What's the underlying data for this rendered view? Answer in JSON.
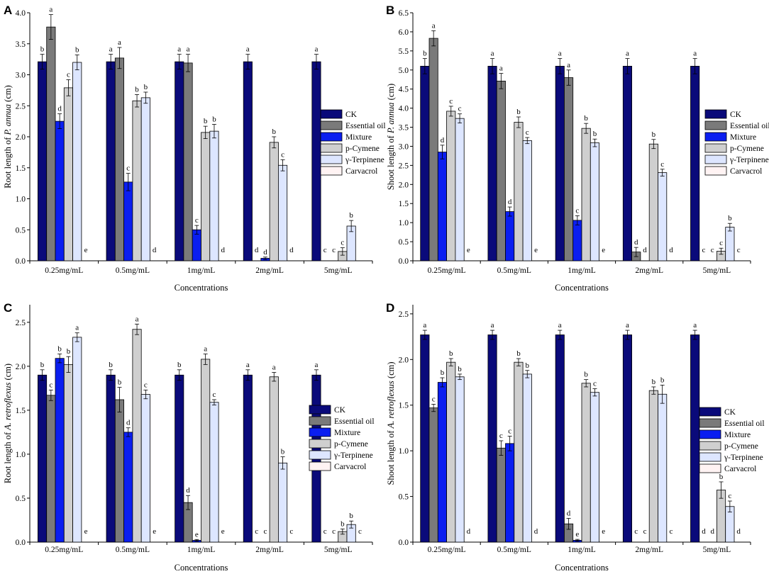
{
  "figure": {
    "legend_entries": [
      "CK",
      "Essential oil",
      "Mixture",
      "p-Cymene",
      "γ-Terpinene",
      "Carvacrol"
    ],
    "series_colors": [
      "#0a0a7a",
      "#7a7a7a",
      "#0a1ef0",
      "#cfcfcf",
      "#dde6ff",
      "#fff3f3"
    ]
  },
  "chart_data": [
    {
      "panel": "A",
      "type": "bar",
      "title": "",
      "xlabel": "Concentrations",
      "ylabel_prefix": "Root length of ",
      "ylabel_species": "P. annua",
      "ylabel_suffix": " (cm)",
      "categories": [
        "0.25mg/mL",
        "0.5mg/mL",
        "1mg/mL",
        "2mg/mL",
        "5mg/mL"
      ],
      "ylim": [
        0,
        4.0
      ],
      "yticks": [
        "0.0",
        "0.5",
        "1.0",
        "1.5",
        "2.0",
        "2.5",
        "3.0",
        "3.5",
        "4.0"
      ],
      "legend_position": "right",
      "series": [
        {
          "name": "CK",
          "values": [
            3.21,
            3.21,
            3.21,
            3.21,
            3.21
          ],
          "errors": [
            0.12,
            0.12,
            0.12,
            0.12,
            0.12
          ],
          "letters": [
            "b",
            "a",
            "a",
            "a",
            "a"
          ]
        },
        {
          "name": "Essential oil",
          "values": [
            3.77,
            3.27,
            3.19,
            0,
            0
          ],
          "errors": [
            0.2,
            0.17,
            0.14,
            0,
            0
          ],
          "letters": [
            "a",
            "a",
            "a",
            "d",
            "c"
          ]
        },
        {
          "name": "Mixture",
          "values": [
            2.25,
            1.27,
            0.5,
            0.04,
            0
          ],
          "errors": [
            0.12,
            0.14,
            0.07,
            0.02,
            0
          ],
          "letters": [
            "d",
            "c",
            "c",
            "d",
            "c"
          ]
        },
        {
          "name": "p-Cymene",
          "values": [
            2.79,
            2.58,
            2.07,
            1.91,
            0.15
          ],
          "errors": [
            0.13,
            0.1,
            0.1,
            0.09,
            0.06
          ],
          "letters": [
            "c",
            "b",
            "b",
            "b",
            "c"
          ]
        },
        {
          "name": "γ-Terpinene",
          "values": [
            3.2,
            2.63,
            2.09,
            1.54,
            0.56
          ],
          "errors": [
            0.12,
            0.09,
            0.11,
            0.09,
            0.09
          ],
          "letters": [
            "b",
            "b",
            "b",
            "c",
            "b"
          ]
        },
        {
          "name": "Carvacrol",
          "values": [
            0,
            0,
            0,
            0,
            0
          ],
          "errors": [
            0,
            0,
            0,
            0,
            0
          ],
          "letters": [
            "e",
            "d",
            "d",
            "d",
            ""
          ]
        }
      ]
    },
    {
      "panel": "B",
      "type": "bar",
      "title": "",
      "xlabel": "Concentrations",
      "ylabel_prefix": "Shoot length of ",
      "ylabel_species": "P. annua",
      "ylabel_suffix": " (cm)",
      "categories": [
        "0.25mg/mL",
        "0.5mg/mL",
        "1mg/mL",
        "2mg/mL",
        "5mg/mL"
      ],
      "ylim": [
        0,
        6.5
      ],
      "yticks": [
        "0.0",
        "0.5",
        "1.0",
        "1.5",
        "2.0",
        "2.5",
        "3.0",
        "3.5",
        "4.0",
        "4.5",
        "5.0",
        "5.5",
        "6.0",
        "6.5"
      ],
      "legend_position": "right",
      "series": [
        {
          "name": "CK",
          "values": [
            5.1,
            5.1,
            5.1,
            5.1,
            5.1
          ],
          "errors": [
            0.2,
            0.2,
            0.2,
            0.2,
            0.2
          ],
          "letters": [
            "b",
            "a",
            "a",
            "a",
            "a"
          ]
        },
        {
          "name": "Essential oil",
          "values": [
            5.83,
            4.71,
            4.8,
            0.23,
            0
          ],
          "errors": [
            0.2,
            0.2,
            0.2,
            0.12,
            0
          ],
          "letters": [
            "a",
            "a",
            "a",
            "d",
            "c"
          ]
        },
        {
          "name": "Mixture",
          "values": [
            2.85,
            1.29,
            1.06,
            0,
            0
          ],
          "errors": [
            0.18,
            0.12,
            0.12,
            0,
            0
          ],
          "letters": [
            "d",
            "d",
            "c",
            "d",
            "c"
          ]
        },
        {
          "name": "p-Cymene",
          "values": [
            3.92,
            3.63,
            3.47,
            3.06,
            0.25
          ],
          "errors": [
            0.13,
            0.14,
            0.13,
            0.12,
            0.08
          ],
          "letters": [
            "c",
            "b",
            "b",
            "b",
            "c"
          ]
        },
        {
          "name": "γ-Terpinene",
          "values": [
            3.73,
            3.15,
            3.09,
            2.31,
            0.88
          ],
          "errors": [
            0.12,
            0.08,
            0.1,
            0.09,
            0.1
          ],
          "letters": [
            "c",
            "c",
            "b",
            "c",
            "b"
          ]
        },
        {
          "name": "Carvacrol",
          "values": [
            0,
            0,
            0,
            0,
            0
          ],
          "errors": [
            0,
            0,
            0,
            0,
            0
          ],
          "letters": [
            "e",
            "e",
            "e",
            "d",
            "c"
          ]
        }
      ]
    },
    {
      "panel": "C",
      "type": "bar",
      "title": "",
      "xlabel": "Concentrations",
      "ylabel_prefix": "Root length of ",
      "ylabel_species": "A. retroflexus",
      "ylabel_suffix": " (cm)",
      "categories": [
        "0.25mg/mL",
        "0.5mg/mL",
        "1mg/mL",
        "2mg/mL",
        "5mg/mL"
      ],
      "ylim": [
        0,
        2.7
      ],
      "yticks": [
        "0.0",
        "0.5",
        "1.0",
        "1.5",
        "2.0",
        "2.5"
      ],
      "legend_position": "right",
      "series": [
        {
          "name": "CK",
          "values": [
            1.9,
            1.9,
            1.9,
            1.9,
            1.9
          ],
          "errors": [
            0.06,
            0.06,
            0.06,
            0.06,
            0.06
          ],
          "letters": [
            "b",
            "b",
            "b",
            "a",
            "a"
          ]
        },
        {
          "name": "Essential oil",
          "values": [
            1.67,
            1.62,
            0.45,
            0,
            0
          ],
          "errors": [
            0.06,
            0.14,
            0.08,
            0,
            0
          ],
          "letters": [
            "c",
            "b",
            "d",
            "c",
            "c"
          ]
        },
        {
          "name": "Mixture",
          "values": [
            2.09,
            1.25,
            0.02,
            0,
            0
          ],
          "errors": [
            0.05,
            0.05,
            0.01,
            0,
            0
          ],
          "letters": [
            "b",
            "d",
            "e",
            "c",
            "c"
          ]
        },
        {
          "name": "p-Cymene",
          "values": [
            2.02,
            2.42,
            2.08,
            1.88,
            0.12
          ],
          "errors": [
            0.09,
            0.06,
            0.06,
            0.05,
            0.03
          ],
          "letters": [
            "b",
            "a",
            "a",
            "a",
            "b"
          ]
        },
        {
          "name": "γ-Terpinene",
          "values": [
            2.33,
            1.68,
            1.59,
            0.9,
            0.2
          ],
          "errors": [
            0.05,
            0.05,
            0.03,
            0.07,
            0.04
          ],
          "letters": [
            "a",
            "c",
            "c",
            "b",
            "b"
          ]
        },
        {
          "name": "Carvacrol",
          "values": [
            0,
            0,
            0,
            0,
            0
          ],
          "errors": [
            0,
            0,
            0,
            0,
            0
          ],
          "letters": [
            "e",
            "e",
            "e",
            "c",
            "c"
          ]
        }
      ]
    },
    {
      "panel": "D",
      "type": "bar",
      "title": "",
      "xlabel": "Concentrations",
      "ylabel_prefix": "Shoot length of ",
      "ylabel_species": "A. retroflexus",
      "ylabel_suffix": " (cm)",
      "categories": [
        "0.25mg/mL",
        "0.5mg/mL",
        "1mg/mL",
        "2mg/mL",
        "5mg/mL"
      ],
      "ylim": [
        0,
        2.6
      ],
      "yticks": [
        "0.0",
        "0.5",
        "1.0",
        "1.5",
        "2.0",
        "2.5"
      ],
      "legend_position": "right",
      "series": [
        {
          "name": "CK",
          "values": [
            2.27,
            2.27,
            2.27,
            2.27,
            2.27
          ],
          "errors": [
            0.05,
            0.05,
            0.05,
            0.05,
            0.05
          ],
          "letters": [
            "a",
            "a",
            "a",
            "a",
            "a"
          ]
        },
        {
          "name": "Essential oil",
          "values": [
            1.47,
            1.03,
            0.2,
            0,
            0
          ],
          "errors": [
            0.04,
            0.08,
            0.06,
            0,
            0
          ],
          "letters": [
            "c",
            "c",
            "d",
            "c",
            "d"
          ]
        },
        {
          "name": "Mixture",
          "values": [
            1.75,
            1.08,
            0.02,
            0,
            0
          ],
          "errors": [
            0.05,
            0.08,
            0.01,
            0,
            0
          ],
          "letters": [
            "b",
            "c",
            "e",
            "c",
            "d"
          ]
        },
        {
          "name": "p-Cymene",
          "values": [
            1.97,
            1.97,
            1.74,
            1.66,
            0.57
          ],
          "errors": [
            0.04,
            0.04,
            0.04,
            0.04,
            0.09
          ],
          "letters": [
            "b",
            "b",
            "b",
            "b",
            "b"
          ]
        },
        {
          "name": "γ-Terpinene",
          "values": [
            1.81,
            1.84,
            1.64,
            1.62,
            0.39
          ],
          "errors": [
            0.03,
            0.04,
            0.04,
            0.1,
            0.06
          ],
          "letters": [
            "b",
            "b",
            "c",
            "b",
            "c"
          ]
        },
        {
          "name": "Carvacrol",
          "values": [
            0,
            0,
            0,
            0,
            0
          ],
          "errors": [
            0,
            0,
            0,
            0,
            0
          ],
          "letters": [
            "d",
            "d",
            "e",
            "c",
            "d"
          ]
        }
      ]
    }
  ]
}
